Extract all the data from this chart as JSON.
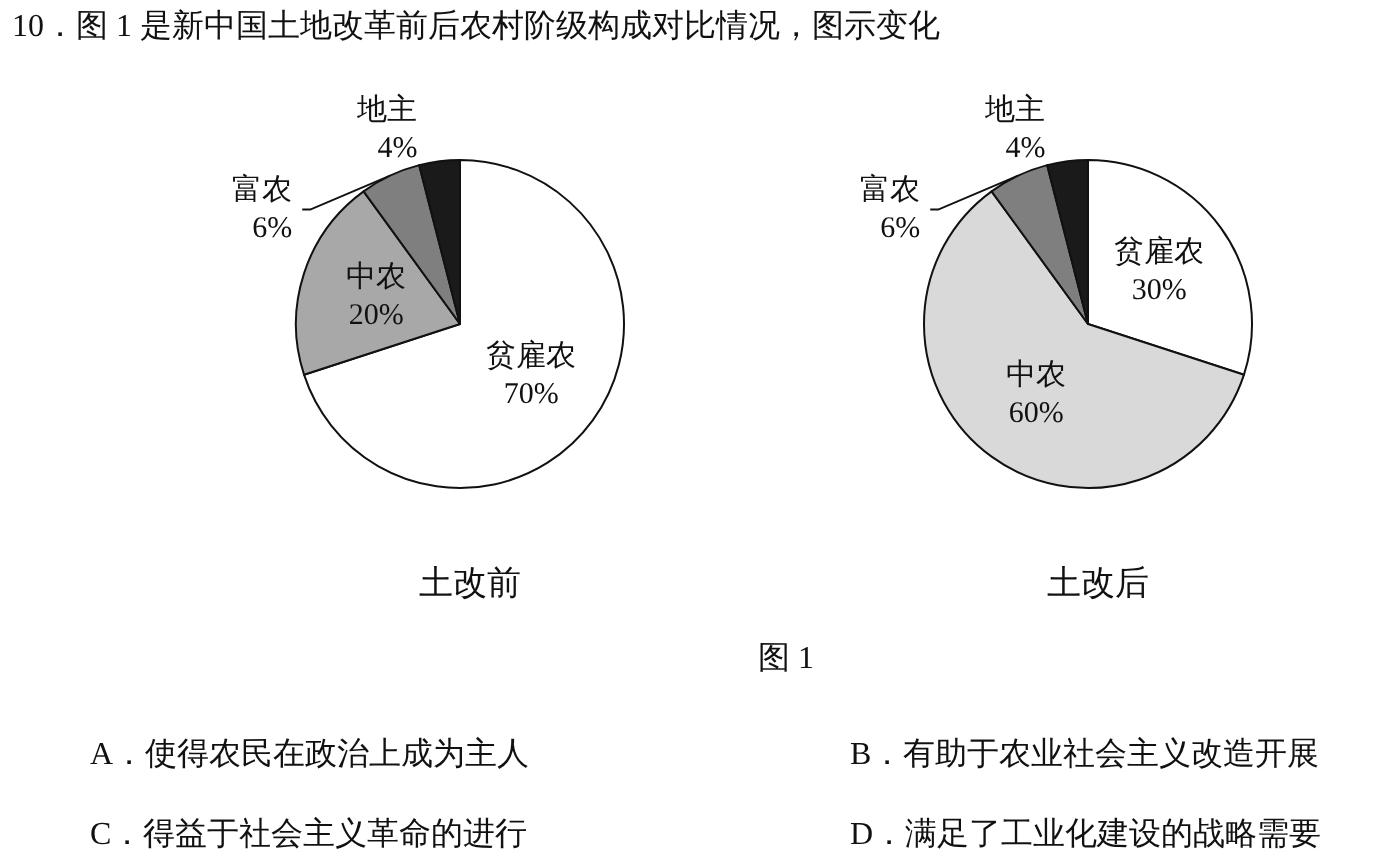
{
  "chart_data": [
    {
      "type": "pie",
      "title": "土改前",
      "categories": [
        "贫雇农",
        "中农",
        "富农",
        "地主"
      ],
      "values": [
        70,
        20,
        6,
        4
      ],
      "value_labels": [
        "70%",
        "20%",
        "6%",
        "4%"
      ],
      "colors": [
        "#ffffff",
        "#a8a8a8",
        "#7f7f7f",
        "#1a1a1a"
      ],
      "annotations": [
        "10．图 1 是新中国土地改革前后农村阶级构成对比情况，图示变化",
        "图 1",
        "A．使得农民在政治上成为主人",
        "B．有助于农业社会主义改造开展",
        "C．得益于社会主义革命的进行",
        "D．满足了工业化建设的战略需要"
      ]
    },
    {
      "type": "pie",
      "title": "土改后",
      "categories": [
        "贫雇农",
        "中农",
        "富农",
        "地主"
      ],
      "values": [
        30,
        60,
        6,
        4
      ],
      "value_labels": [
        "30%",
        "60%",
        "6%",
        "4%"
      ],
      "colors": [
        "#ffffff",
        "#d9d9d9",
        "#7f7f7f",
        "#1a1a1a"
      ]
    }
  ]
}
